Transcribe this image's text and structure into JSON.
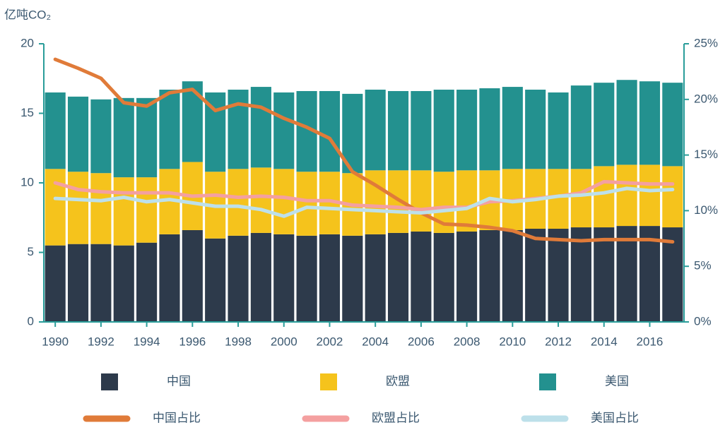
{
  "chart_data": {
    "type": "bar",
    "stacked": true,
    "ylabel": "亿吨CO₂",
    "categories": [
      "1990",
      null,
      "1992",
      null,
      "1994",
      null,
      "1996",
      null,
      "1998",
      null,
      "2000",
      null,
      "2002",
      null,
      "2004",
      null,
      "2006",
      null,
      "2008",
      null,
      "2010",
      null,
      "2012",
      null,
      "2014",
      null,
      "2016",
      null
    ],
    "ylim": [
      0,
      20
    ],
    "yticks": [
      0,
      5,
      10,
      15,
      20
    ],
    "y2lim": [
      0,
      25
    ],
    "y2ticks": [
      {
        "value": 0,
        "label": "0%"
      },
      {
        "value": 5,
        "label": "5%"
      },
      {
        "value": 10,
        "label": "10%"
      },
      {
        "value": 15,
        "label": "15%"
      },
      {
        "value": 20,
        "label": "20%"
      },
      {
        "value": 25,
        "label": "25%"
      }
    ],
    "series": [
      {
        "name": "中国",
        "type": "bar",
        "color": "#2d3a4b",
        "values": [
          5.5,
          5.6,
          5.6,
          5.5,
          5.7,
          6.3,
          6.6,
          6.0,
          6.2,
          6.4,
          6.3,
          6.2,
          6.3,
          6.2,
          6.3,
          6.4,
          6.5,
          6.4,
          6.5,
          6.6,
          6.6,
          6.7,
          6.7,
          6.8,
          6.8,
          6.9,
          6.9,
          6.8
        ]
      },
      {
        "name": "欧盟",
        "type": "bar",
        "color": "#f5c31c",
        "values": [
          5.5,
          5.2,
          5.1,
          4.9,
          4.7,
          4.7,
          4.9,
          4.8,
          4.8,
          4.7,
          4.7,
          4.6,
          4.5,
          4.5,
          4.6,
          4.5,
          4.4,
          4.4,
          4.4,
          4.3,
          4.4,
          4.3,
          4.3,
          4.2,
          4.4,
          4.4,
          4.4,
          4.4
        ]
      },
      {
        "name": "美国",
        "type": "bar",
        "color": "#23918f",
        "values": [
          5.5,
          5.4,
          5.3,
          5.7,
          5.7,
          5.7,
          5.8,
          5.7,
          5.7,
          5.8,
          5.5,
          5.8,
          5.8,
          5.7,
          5.8,
          5.7,
          5.7,
          5.9,
          5.8,
          5.9,
          5.9,
          5.7,
          5.5,
          6.0,
          6.0,
          6.1,
          6.0,
          6.0
        ]
      },
      {
        "name": "中国占比",
        "type": "line",
        "axis": "y2",
        "color": "#e07b39",
        "values": [
          23.6,
          22.8,
          21.9,
          19.7,
          19.4,
          20.6,
          20.9,
          19.0,
          19.6,
          19.3,
          18.3,
          17.5,
          16.5,
          13.5,
          12.3,
          11.0,
          9.8,
          8.8,
          8.7,
          8.5,
          8.2,
          7.5,
          7.4,
          7.3,
          7.4,
          7.4,
          7.4,
          7.2
        ]
      },
      {
        "name": "欧盟占比",
        "type": "line",
        "axis": "y2",
        "color": "#f4a0a0",
        "values": [
          12.5,
          11.9,
          11.7,
          11.6,
          11.6,
          11.6,
          11.3,
          11.4,
          11.2,
          11.3,
          11.2,
          10.9,
          10.9,
          10.5,
          10.4,
          10.3,
          10.1,
          10.3,
          10.3,
          10.8,
          10.9,
          11.1,
          11.3,
          11.6,
          12.6,
          12.5,
          12.4,
          12.4
        ]
      },
      {
        "name": "美国占比",
        "type": "line",
        "axis": "y2",
        "color": "#bde0ea",
        "values": [
          11.1,
          11.0,
          10.9,
          11.2,
          10.8,
          11.0,
          10.7,
          10.4,
          10.4,
          10.1,
          9.5,
          10.3,
          10.2,
          10.1,
          10.0,
          9.9,
          9.8,
          10.0,
          10.2,
          11.1,
          10.8,
          11.0,
          11.3,
          11.4,
          11.6,
          12.0,
          11.8,
          11.9
        ]
      }
    ]
  }
}
